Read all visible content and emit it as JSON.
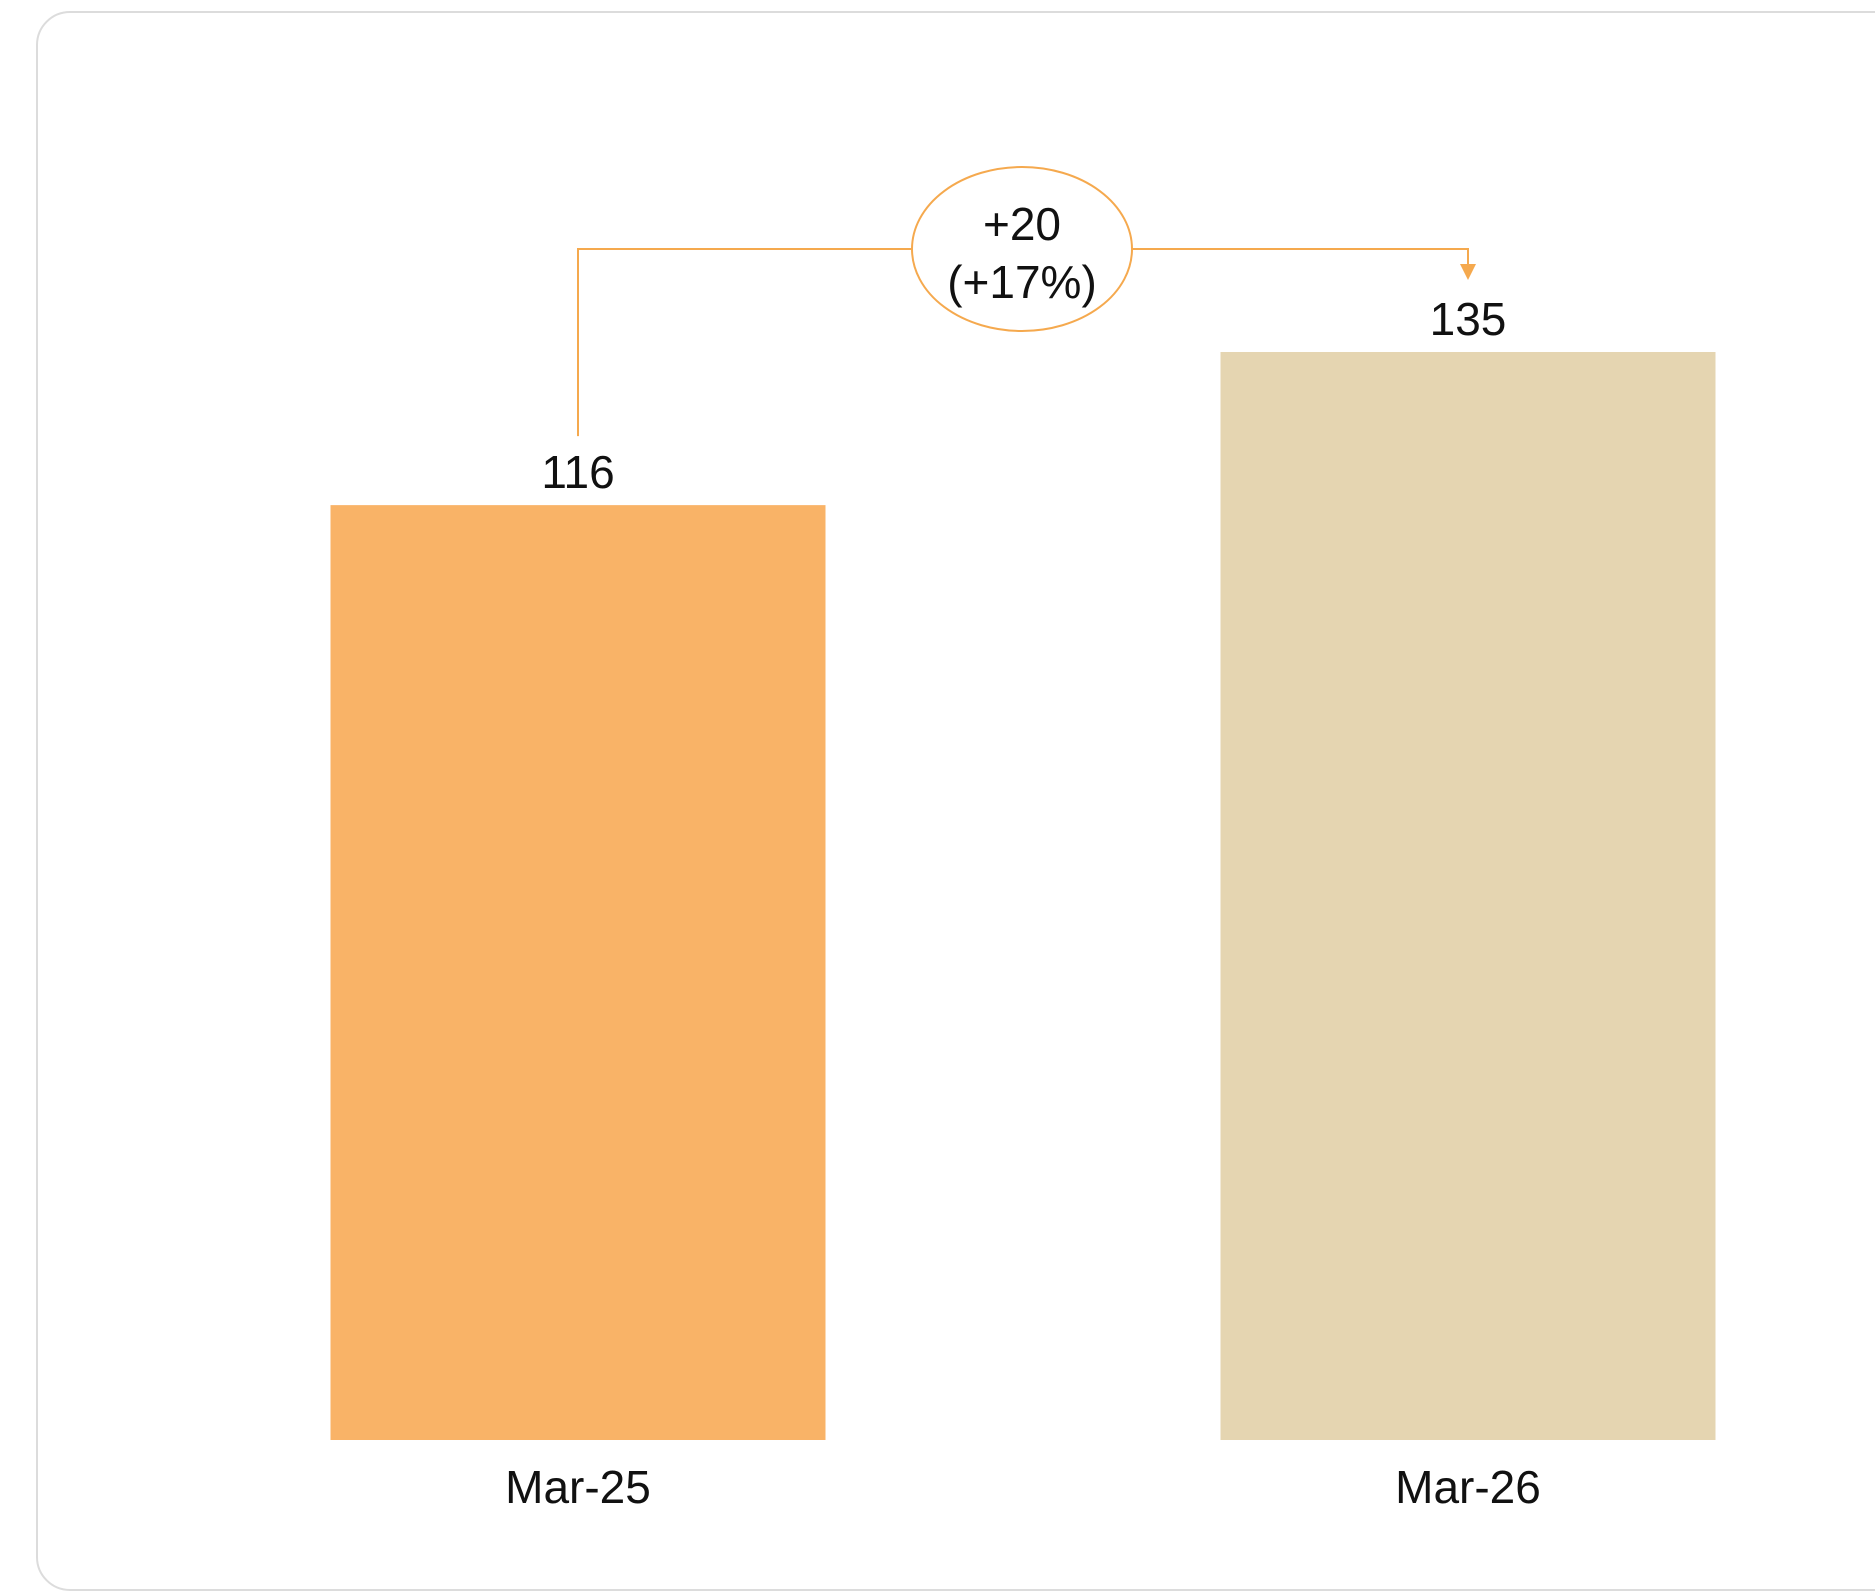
{
  "chart_data": {
    "type": "bar",
    "categories": [
      "Mar-25",
      "Mar-26"
    ],
    "values": [
      116,
      135
    ],
    "value_labels": [
      "116",
      "135"
    ],
    "colors": [
      "#F9B367",
      "#E5D5B1"
    ],
    "ylim": [
      0,
      135
    ],
    "grid": false,
    "title": "",
    "xlabel": "",
    "ylabel": "",
    "change_annotation": {
      "line1": "+20",
      "line2": "(+17%)",
      "color": "#F5A94E",
      "from": "Mar-25",
      "to": "Mar-26"
    }
  }
}
